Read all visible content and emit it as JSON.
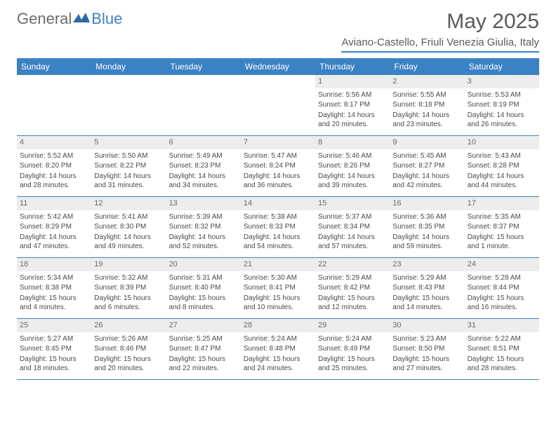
{
  "logo": {
    "general": "General",
    "blue": "Blue"
  },
  "title": "May 2025",
  "location": "Aviano-Castello, Friuli Venezia Giulia, Italy",
  "colors": {
    "header_bg": "#3b82c4",
    "header_text": "#ffffff",
    "daynum_bg": "#ededed",
    "body_text": "#4a4a4a",
    "title_text": "#5a5a5a"
  },
  "day_headers": [
    "Sunday",
    "Monday",
    "Tuesday",
    "Wednesday",
    "Thursday",
    "Friday",
    "Saturday"
  ],
  "weeks": [
    [
      {
        "empty": true
      },
      {
        "empty": true
      },
      {
        "empty": true
      },
      {
        "empty": true
      },
      {
        "n": "1",
        "sunrise": "Sunrise: 5:56 AM",
        "sunset": "Sunset: 8:17 PM",
        "daylight": "Daylight: 14 hours and 20 minutes."
      },
      {
        "n": "2",
        "sunrise": "Sunrise: 5:55 AM",
        "sunset": "Sunset: 8:18 PM",
        "daylight": "Daylight: 14 hours and 23 minutes."
      },
      {
        "n": "3",
        "sunrise": "Sunrise: 5:53 AM",
        "sunset": "Sunset: 8:19 PM",
        "daylight": "Daylight: 14 hours and 26 minutes."
      }
    ],
    [
      {
        "n": "4",
        "sunrise": "Sunrise: 5:52 AM",
        "sunset": "Sunset: 8:20 PM",
        "daylight": "Daylight: 14 hours and 28 minutes."
      },
      {
        "n": "5",
        "sunrise": "Sunrise: 5:50 AM",
        "sunset": "Sunset: 8:22 PM",
        "daylight": "Daylight: 14 hours and 31 minutes."
      },
      {
        "n": "6",
        "sunrise": "Sunrise: 5:49 AM",
        "sunset": "Sunset: 8:23 PM",
        "daylight": "Daylight: 14 hours and 34 minutes."
      },
      {
        "n": "7",
        "sunrise": "Sunrise: 5:47 AM",
        "sunset": "Sunset: 8:24 PM",
        "daylight": "Daylight: 14 hours and 36 minutes."
      },
      {
        "n": "8",
        "sunrise": "Sunrise: 5:46 AM",
        "sunset": "Sunset: 8:26 PM",
        "daylight": "Daylight: 14 hours and 39 minutes."
      },
      {
        "n": "9",
        "sunrise": "Sunrise: 5:45 AM",
        "sunset": "Sunset: 8:27 PM",
        "daylight": "Daylight: 14 hours and 42 minutes."
      },
      {
        "n": "10",
        "sunrise": "Sunrise: 5:43 AM",
        "sunset": "Sunset: 8:28 PM",
        "daylight": "Daylight: 14 hours and 44 minutes."
      }
    ],
    [
      {
        "n": "11",
        "sunrise": "Sunrise: 5:42 AM",
        "sunset": "Sunset: 8:29 PM",
        "daylight": "Daylight: 14 hours and 47 minutes."
      },
      {
        "n": "12",
        "sunrise": "Sunrise: 5:41 AM",
        "sunset": "Sunset: 8:30 PM",
        "daylight": "Daylight: 14 hours and 49 minutes."
      },
      {
        "n": "13",
        "sunrise": "Sunrise: 5:39 AM",
        "sunset": "Sunset: 8:32 PM",
        "daylight": "Daylight: 14 hours and 52 minutes."
      },
      {
        "n": "14",
        "sunrise": "Sunrise: 5:38 AM",
        "sunset": "Sunset: 8:33 PM",
        "daylight": "Daylight: 14 hours and 54 minutes."
      },
      {
        "n": "15",
        "sunrise": "Sunrise: 5:37 AM",
        "sunset": "Sunset: 8:34 PM",
        "daylight": "Daylight: 14 hours and 57 minutes."
      },
      {
        "n": "16",
        "sunrise": "Sunrise: 5:36 AM",
        "sunset": "Sunset: 8:35 PM",
        "daylight": "Daylight: 14 hours and 59 minutes."
      },
      {
        "n": "17",
        "sunrise": "Sunrise: 5:35 AM",
        "sunset": "Sunset: 8:37 PM",
        "daylight": "Daylight: 15 hours and 1 minute."
      }
    ],
    [
      {
        "n": "18",
        "sunrise": "Sunrise: 5:34 AM",
        "sunset": "Sunset: 8:38 PM",
        "daylight": "Daylight: 15 hours and 4 minutes."
      },
      {
        "n": "19",
        "sunrise": "Sunrise: 5:32 AM",
        "sunset": "Sunset: 8:39 PM",
        "daylight": "Daylight: 15 hours and 6 minutes."
      },
      {
        "n": "20",
        "sunrise": "Sunrise: 5:31 AM",
        "sunset": "Sunset: 8:40 PM",
        "daylight": "Daylight: 15 hours and 8 minutes."
      },
      {
        "n": "21",
        "sunrise": "Sunrise: 5:30 AM",
        "sunset": "Sunset: 8:41 PM",
        "daylight": "Daylight: 15 hours and 10 minutes."
      },
      {
        "n": "22",
        "sunrise": "Sunrise: 5:29 AM",
        "sunset": "Sunset: 8:42 PM",
        "daylight": "Daylight: 15 hours and 12 minutes."
      },
      {
        "n": "23",
        "sunrise": "Sunrise: 5:29 AM",
        "sunset": "Sunset: 8:43 PM",
        "daylight": "Daylight: 15 hours and 14 minutes."
      },
      {
        "n": "24",
        "sunrise": "Sunrise: 5:28 AM",
        "sunset": "Sunset: 8:44 PM",
        "daylight": "Daylight: 15 hours and 16 minutes."
      }
    ],
    [
      {
        "n": "25",
        "sunrise": "Sunrise: 5:27 AM",
        "sunset": "Sunset: 8:45 PM",
        "daylight": "Daylight: 15 hours and 18 minutes."
      },
      {
        "n": "26",
        "sunrise": "Sunrise: 5:26 AM",
        "sunset": "Sunset: 8:46 PM",
        "daylight": "Daylight: 15 hours and 20 minutes."
      },
      {
        "n": "27",
        "sunrise": "Sunrise: 5:25 AM",
        "sunset": "Sunset: 8:47 PM",
        "daylight": "Daylight: 15 hours and 22 minutes."
      },
      {
        "n": "28",
        "sunrise": "Sunrise: 5:24 AM",
        "sunset": "Sunset: 8:48 PM",
        "daylight": "Daylight: 15 hours and 24 minutes."
      },
      {
        "n": "29",
        "sunrise": "Sunrise: 5:24 AM",
        "sunset": "Sunset: 8:49 PM",
        "daylight": "Daylight: 15 hours and 25 minutes."
      },
      {
        "n": "30",
        "sunrise": "Sunrise: 5:23 AM",
        "sunset": "Sunset: 8:50 PM",
        "daylight": "Daylight: 15 hours and 27 minutes."
      },
      {
        "n": "31",
        "sunrise": "Sunrise: 5:22 AM",
        "sunset": "Sunset: 8:51 PM",
        "daylight": "Daylight: 15 hours and 28 minutes."
      }
    ]
  ]
}
